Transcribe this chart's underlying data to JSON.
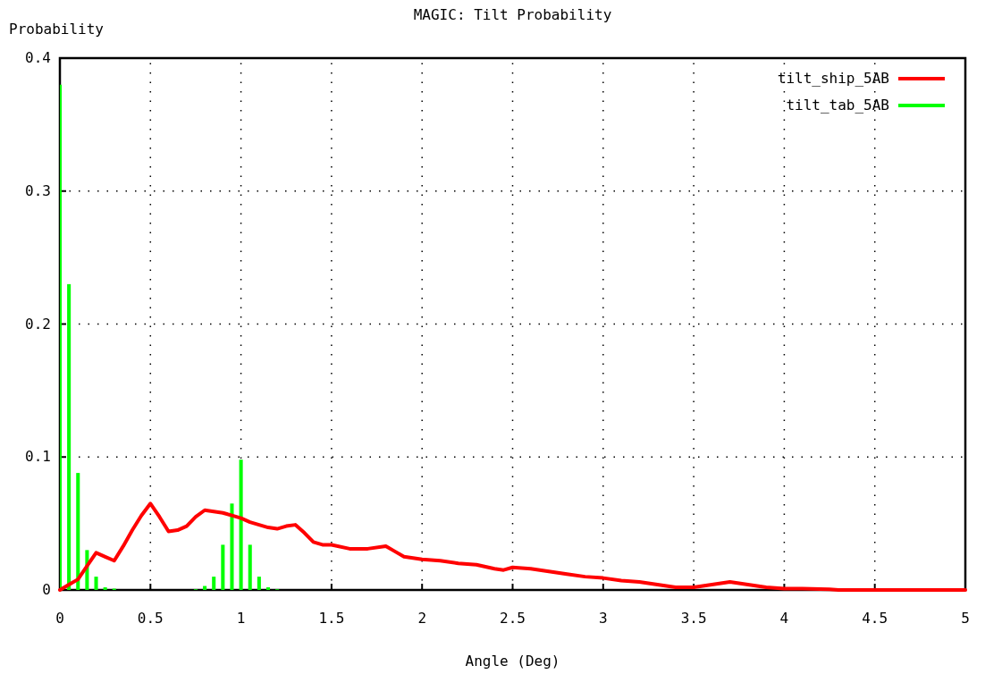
{
  "chart_data": {
    "type": "line",
    "title": "MAGIC: Tilt Probability",
    "xlabel": "Angle (Deg)",
    "ylabel": "Probability",
    "xlim": [
      0,
      5
    ],
    "ylim": [
      0,
      0.4
    ],
    "xticks": [
      0,
      0.5,
      1,
      1.5,
      2,
      2.5,
      3,
      3.5,
      4,
      4.5,
      5
    ],
    "yticks": [
      0,
      0.1,
      0.2,
      0.3,
      0.4
    ],
    "grid": true,
    "legend": "top right",
    "series": [
      {
        "name": "tilt_ship_5AB",
        "color": "#ff0000",
        "x": [
          0,
          0.05,
          0.1,
          0.15,
          0.2,
          0.25,
          0.3,
          0.35,
          0.4,
          0.45,
          0.5,
          0.55,
          0.6,
          0.65,
          0.7,
          0.75,
          0.8,
          0.85,
          0.9,
          0.95,
          1,
          1.05,
          1.1,
          1.15,
          1.2,
          1.25,
          1.3,
          1.35,
          1.4,
          1.45,
          1.5,
          1.6,
          1.7,
          1.8,
          1.85,
          1.9,
          2,
          2.1,
          2.2,
          2.3,
          2.4,
          2.45,
          2.5,
          2.6,
          2.7,
          2.8,
          2.9,
          3,
          3.1,
          3.2,
          3.3,
          3.4,
          3.5,
          3.6,
          3.7,
          3.8,
          3.9,
          4,
          4.1,
          4.25,
          4.3,
          5
        ],
        "values": [
          0,
          0.004,
          0.008,
          0.018,
          0.028,
          0.025,
          0.022,
          0.033,
          0.045,
          0.056,
          0.065,
          0.055,
          0.044,
          0.045,
          0.048,
          0.055,
          0.06,
          0.059,
          0.058,
          0.056,
          0.054,
          0.051,
          0.049,
          0.047,
          0.046,
          0.048,
          0.049,
          0.043,
          0.036,
          0.034,
          0.034,
          0.031,
          0.031,
          0.033,
          0.029,
          0.025,
          0.023,
          0.022,
          0.02,
          0.019,
          0.016,
          0.015,
          0.017,
          0.016,
          0.014,
          0.012,
          0.01,
          0.009,
          0.007,
          0.006,
          0.004,
          0.002,
          0.002,
          0.004,
          0.006,
          0.004,
          0.002,
          0.001,
          0.001,
          0.0005,
          0,
          0
        ]
      },
      {
        "name": "tilt_tab_5AB",
        "color": "#00ff00",
        "type": "bar",
        "x": [
          0,
          0.05,
          0.1,
          0.15,
          0.2,
          0.25,
          0.3,
          0.75,
          0.8,
          0.85,
          0.9,
          0.95,
          1,
          1.05,
          1.1,
          1.15,
          1.2
        ],
        "values": [
          0.38,
          0.23,
          0.088,
          0.03,
          0.01,
          0.002,
          0.001,
          0.0005,
          0.003,
          0.01,
          0.034,
          0.065,
          0.098,
          0.034,
          0.01,
          0.002,
          0.0005
        ]
      }
    ]
  }
}
